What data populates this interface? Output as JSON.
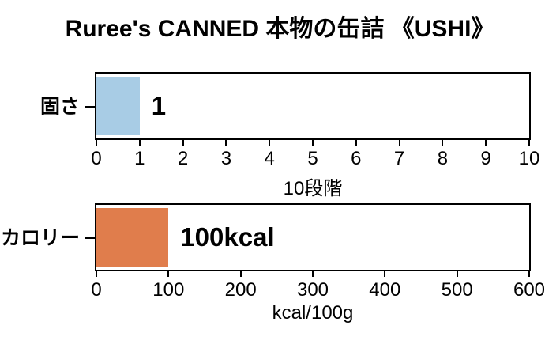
{
  "title": "Ruree's CANNED 本物の缶詰 《USHI》",
  "colors": {
    "axis": "#000000",
    "text": "#000000",
    "background": "#ffffff"
  },
  "chart_data": [
    {
      "type": "bar",
      "orientation": "horizontal",
      "title": "",
      "categories": [
        "固さ"
      ],
      "values": [
        1
      ],
      "value_labels": [
        "1"
      ],
      "bar_color": "#a8cce5",
      "xlabel": "10段階",
      "ylabel": "",
      "xlim": [
        0,
        10
      ],
      "xticks": [
        0,
        1,
        2,
        3,
        4,
        5,
        6,
        7,
        8,
        9,
        10
      ],
      "grid": false,
      "legend": false
    },
    {
      "type": "bar",
      "orientation": "horizontal",
      "title": "",
      "categories": [
        "カロリー"
      ],
      "values": [
        100
      ],
      "value_labels": [
        "100kcal"
      ],
      "bar_color": "#e07d4c",
      "xlabel": "kcal/100g",
      "ylabel": "",
      "xlim": [
        0,
        600
      ],
      "xticks": [
        0,
        100,
        200,
        300,
        400,
        500,
        600
      ],
      "grid": false,
      "legend": false
    }
  ]
}
